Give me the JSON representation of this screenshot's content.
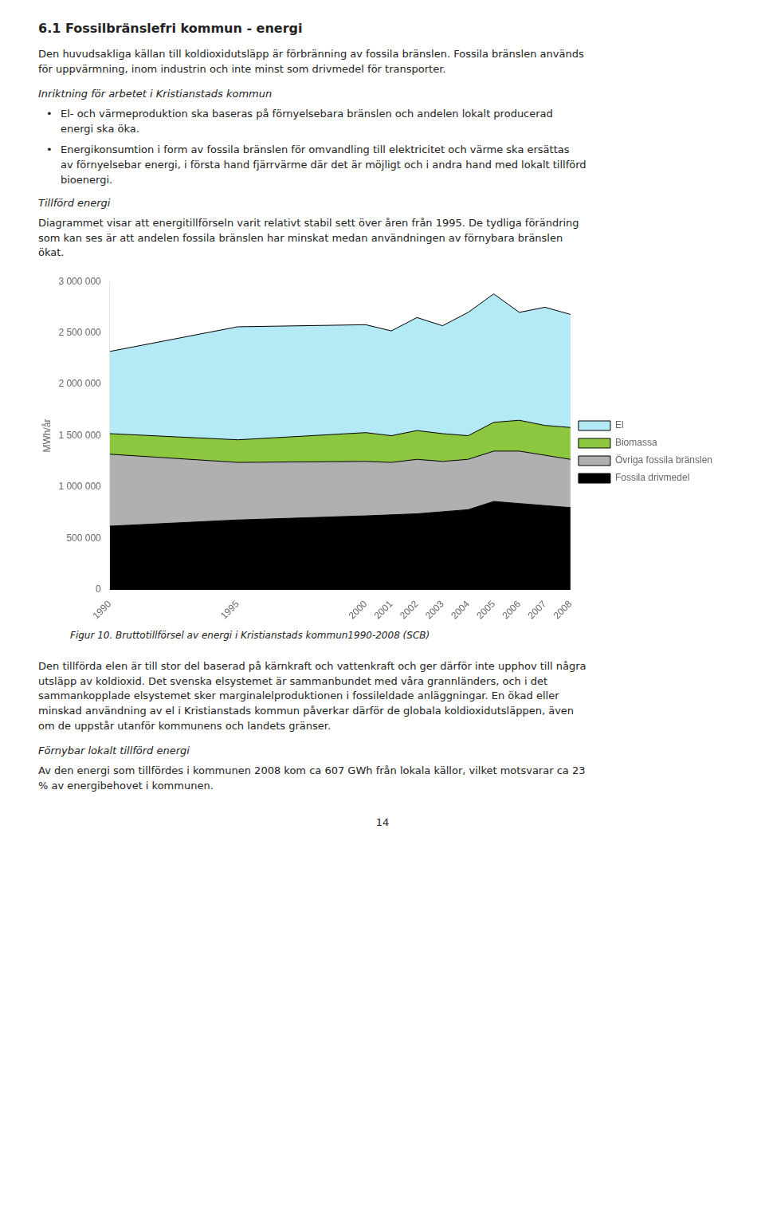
{
  "chart_data": {
    "type": "area",
    "stacked": true,
    "x": [
      1990,
      1995,
      2000,
      2001,
      2002,
      2003,
      2004,
      2005,
      2006,
      2007,
      2008
    ],
    "series": [
      {
        "name": "Fossila drivmedel",
        "color": "#000000",
        "values": [
          620000,
          680000,
          720000,
          730000,
          740000,
          760000,
          780000,
          860000,
          840000,
          820000,
          800000
        ]
      },
      {
        "name": "Övriga fossila bränslen",
        "color": "#b0b0b0",
        "values": [
          700000,
          560000,
          530000,
          510000,
          530000,
          490000,
          490000,
          490000,
          510000,
          490000,
          470000
        ]
      },
      {
        "name": "Biomassa",
        "color": "#8dc63f",
        "values": [
          200000,
          220000,
          280000,
          260000,
          280000,
          270000,
          230000,
          280000,
          300000,
          290000,
          310000
        ]
      },
      {
        "name": "El",
        "color": "#b3eaf5",
        "values": [
          800000,
          1100000,
          1050000,
          1020000,
          1100000,
          1050000,
          1200000,
          1250000,
          1050000,
          1150000,
          1100000
        ]
      }
    ],
    "xlim": [
      1990,
      2008
    ],
    "xticks": [
      1990,
      1995,
      2000,
      2001,
      2002,
      2003,
      2004,
      2005,
      2006,
      2007,
      2008
    ],
    "ylim": [
      0,
      3000000
    ],
    "yticks": [
      0,
      {
        "value": 500000,
        "label": "500 000"
      },
      {
        "value": 1000000,
        "label": "1 000 000"
      },
      {
        "value": 1500000,
        "label": "1 500 000"
      },
      {
        "value": 2000000,
        "label": "2 000 000"
      },
      {
        "value": 2500000,
        "label": "2 500 000"
      },
      {
        "value": 3000000,
        "label": "3 000 000"
      }
    ],
    "ylabel": "MWh/år",
    "grid": false,
    "legend": "right",
    "caption": "Figur 10. Bruttotillförsel av energi i Kristianstads kommun1990-2008 (SCB)"
  },
  "text_before": [
    {
      "kind": "heading",
      "text": "6.1 Fossilbränslefri kommun - energi"
    },
    {
      "kind": "paragraph",
      "text": "Den huvudsakliga källan till koldioxidutsläpp är förbränning av fossila bränslen. Fossila bränslen används\nför uppvärmning, inom industrin och inte minst som drivmedel för transporter."
    },
    {
      "kind": "subheading",
      "text": "Inriktning för arbetet i Kristianstads kommun"
    },
    {
      "kind": "bullet",
      "text": "El- och värmeproduktion ska baseras på förnyelsebara bränslen och andelen lokalt producerad\nenergi ska öka."
    },
    {
      "kind": "bullet",
      "text": "Energikonsumtion i form av fossila bränslen för omvandling till elektricitet och värme ska ersättas\nav förnyelsebar energi, i första hand fjärrvärme där det är möjligt och i andra hand med lokalt tillförd\nbioenergi."
    },
    {
      "kind": "subheading",
      "text": "Tillförd energi"
    },
    {
      "kind": "paragraph",
      "text": "Diagrammet visar att energitillförseln varit relativt stabil sett över åren från 1995. De tydliga förändring\nsom kan ses är att andelen fossila bränslen har minskat medan användningen av förnybara bränslen\nökat."
    }
  ],
  "text_after": [
    {
      "kind": "paragraph",
      "text": "Den tillförda elen är till stor del baserad på kärnkraft och vattenkraft och ger därför inte upphov till några\nutsläpp av koldioxid. Det svenska elsystemet är sammanbundet med våra grannländers, och i det\nsammankopplade elsystemet sker marginalelproduktionen i fossileldade anläggningar. En ökad eller\nminskad användning av el i Kristianstads kommun påverkar därför de globala koldioxidutsläppen, även\nom de uppstår utanför kommunens och landets gränser."
    },
    {
      "kind": "subheading",
      "text": "Förnybar lokalt tillförd energi"
    },
    {
      "kind": "paragraph",
      "text": "Av den energi som tillfördes i kommunen 2008 kom ca 607 GWh från lokala källor, vilket motsvarar ca 23\n% av energibehovet i kommunen."
    }
  ],
  "page_number": "14"
}
